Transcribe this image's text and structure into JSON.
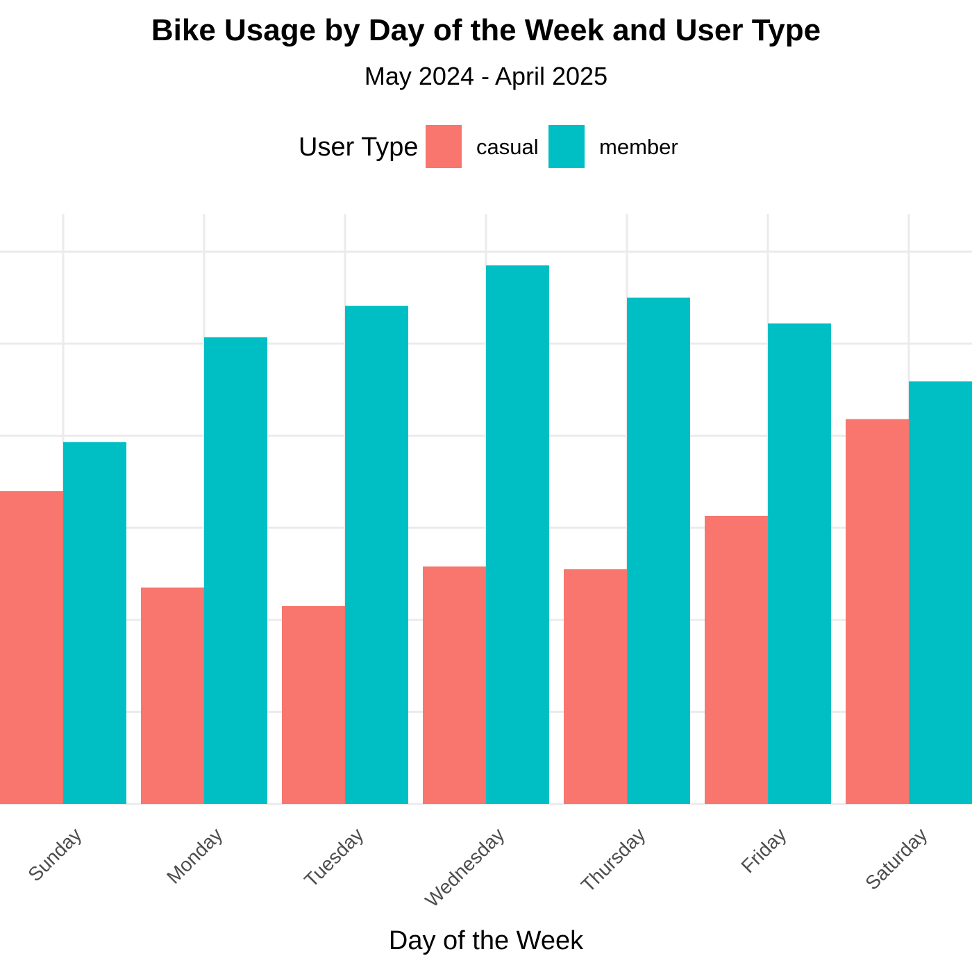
{
  "chart_data": {
    "type": "bar",
    "title": "Bike Usage by Day of the Week and User Type",
    "subtitle": "May 2024 - April 2025",
    "xlabel": "Day of the Week",
    "ylabel": "",
    "categories": [
      "Sunday",
      "Monday",
      "Tuesday",
      "Wednesday",
      "Thursday",
      "Friday",
      "Saturday"
    ],
    "series": [
      {
        "name": "casual",
        "color": "#F8766D",
        "values": [
          340,
          235,
          215,
          258,
          255,
          313,
          418
        ]
      },
      {
        "name": "member",
        "color": "#00BFC4",
        "values": [
          393,
          507,
          541,
          585,
          550,
          522,
          459
        ]
      }
    ],
    "ylim": [
      0,
      641
    ],
    "grid": true,
    "legend": {
      "title": "User Type",
      "placement": "top"
    }
  }
}
